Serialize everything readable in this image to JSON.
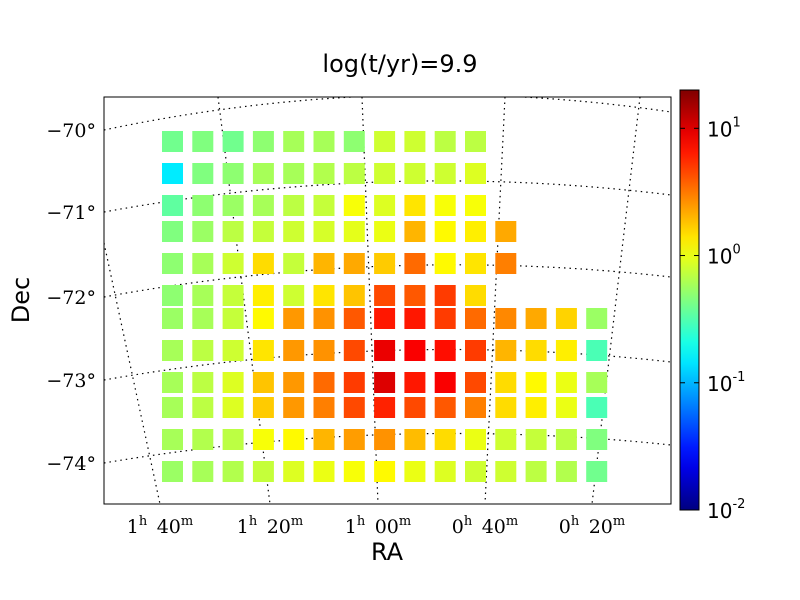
{
  "chart_data": {
    "type": "heatmap",
    "title": "log(t/yr)=9.9",
    "xlabel": "RA",
    "ylabel": "Dec",
    "x_tick_labels": [
      {
        "h": "1",
        "m": "40"
      },
      {
        "h": "1",
        "m": "20"
      },
      {
        "h": "1",
        "m": "00"
      },
      {
        "h": "0",
        "m": "40"
      },
      {
        "h": "0",
        "m": "20"
      }
    ],
    "y_tick_labels": [
      "−70°",
      "−71°",
      "−72°",
      "−73°",
      "−74°"
    ],
    "y_ticks": [
      -70,
      -71,
      -72,
      -73,
      -74
    ],
    "colorbar": {
      "scale": "log",
      "range": [
        0.01,
        20
      ],
      "tick_values": [
        10,
        1,
        0.1,
        0.01
      ],
      "tick_labels": [
        {
          "base": "10",
          "exp": "1"
        },
        {
          "base": "10",
          "exp": "0"
        },
        {
          "base": "10",
          "exp": "-1"
        },
        {
          "base": "10",
          "exp": "-2"
        }
      ],
      "colormap": "jet"
    },
    "grid": "dotted curved RA/Dec graticule",
    "columns": 15,
    "cells": [
      [
        0.4,
        0.45,
        0.4,
        0.5,
        0.6,
        0.6,
        0.5,
        0.8,
        0.8,
        0.7,
        0.7,
        null,
        null,
        null,
        null
      ],
      [
        0.15,
        0.45,
        0.5,
        0.6,
        0.6,
        0.65,
        0.7,
        0.8,
        0.8,
        0.8,
        0.9,
        null,
        null,
        null,
        null
      ],
      [
        0.35,
        0.5,
        0.55,
        0.6,
        0.7,
        0.75,
        1.1,
        0.9,
        1.4,
        1.1,
        1.1,
        null,
        null,
        null,
        null
      ],
      [
        0.45,
        0.55,
        0.7,
        0.75,
        0.8,
        0.85,
        0.95,
        1.0,
        2.0,
        1.2,
        1.3,
        2.2,
        null,
        null,
        null
      ],
      [
        0.5,
        0.6,
        0.8,
        1.5,
        0.75,
        2.0,
        2.2,
        1.7,
        3.5,
        1.2,
        1.4,
        3.0,
        null,
        null,
        null
      ],
      [
        0.5,
        0.6,
        0.75,
        1.3,
        0.8,
        1.4,
        1.8,
        4.5,
        4.0,
        5.0,
        1.5,
        null,
        null,
        null,
        null
      ],
      [
        0.55,
        0.6,
        0.75,
        1.2,
        2.5,
        2.6,
        4.0,
        6.5,
        6.5,
        5.0,
        3.5,
        2.8,
        2.2,
        1.6,
        0.55
      ],
      [
        0.6,
        0.7,
        0.8,
        1.4,
        2.5,
        2.6,
        4.5,
        9.0,
        8.0,
        7.0,
        5.0,
        2.0,
        1.5,
        1.3,
        0.3
      ],
      [
        0.6,
        0.7,
        0.9,
        1.8,
        2.5,
        3.5,
        5.0,
        10.0,
        6.5,
        8.0,
        4.5,
        1.5,
        1.2,
        1.0,
        0.6
      ],
      [
        0.6,
        0.7,
        0.9,
        1.7,
        2.5,
        3.0,
        4.5,
        6.0,
        4.5,
        4.0,
        3.0,
        1.5,
        1.3,
        1.0,
        0.3
      ],
      [
        0.6,
        0.65,
        0.7,
        1.1,
        1.2,
        2.0,
        2.4,
        2.6,
        1.9,
        1.5,
        1.0,
        0.8,
        0.75,
        0.7,
        0.45
      ],
      [
        0.55,
        0.6,
        0.65,
        0.75,
        0.9,
        1.0,
        1.1,
        1.2,
        1.0,
        0.9,
        0.8,
        0.8,
        0.7,
        0.65,
        0.4
      ]
    ]
  }
}
